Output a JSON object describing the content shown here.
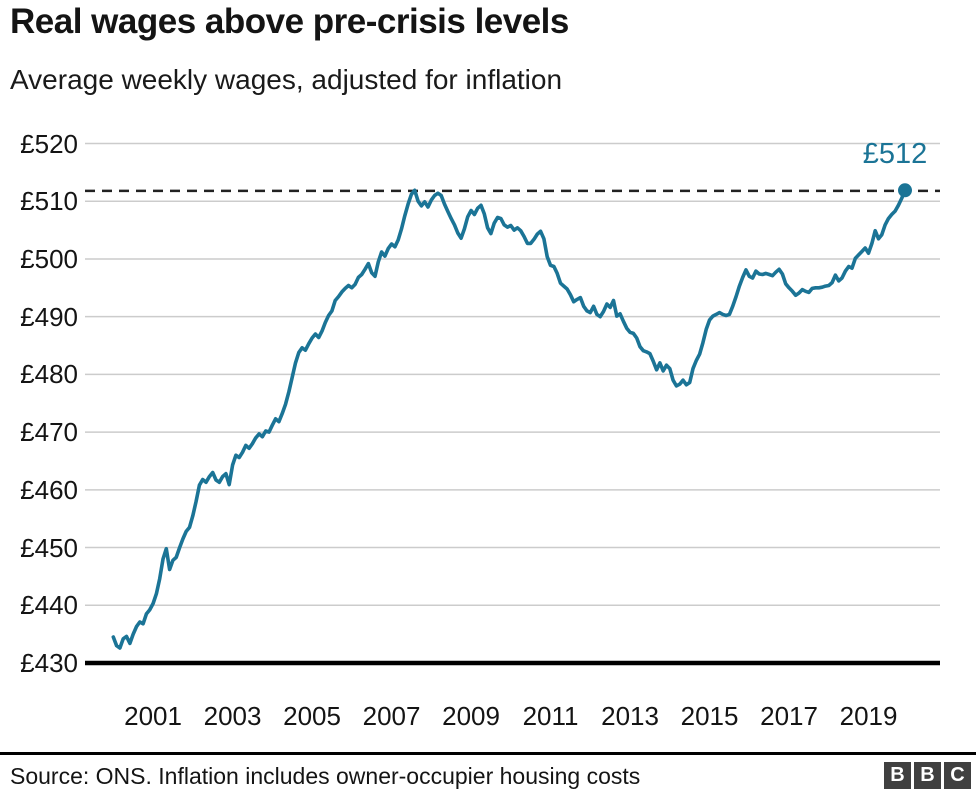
{
  "header": {
    "title": "Real wages above pre-crisis levels",
    "subtitle": "Average weekly wages, adjusted for inflation"
  },
  "chart_data": {
    "type": "line",
    "title": "Real wages above pre-crisis levels",
    "subtitle": "Average weekly wages, adjusted for inflation",
    "unit": "GBP per week",
    "currency_prefix": "£",
    "x_start_year": 2000,
    "x_interval_months": 1,
    "values": [
      434.5,
      433.0,
      432.6,
      434.2,
      434.6,
      433.4,
      435.0,
      436.3,
      437.1,
      436.8,
      438.5,
      439.2,
      440.3,
      442.0,
      444.6,
      448.0,
      449.8,
      446.2,
      447.8,
      448.3,
      450.0,
      451.5,
      452.8,
      453.5,
      455.5,
      458.0,
      460.8,
      461.8,
      461.3,
      462.3,
      463.0,
      461.7,
      461.3,
      462.3,
      462.8,
      460.9,
      464.3,
      466.0,
      465.6,
      466.5,
      467.7,
      467.2,
      468.0,
      469.0,
      469.7,
      469.2,
      470.2,
      470.0,
      471.2,
      472.3,
      471.8,
      473.2,
      474.8,
      477.0,
      479.5,
      482.0,
      483.8,
      484.6,
      484.2,
      485.3,
      486.3,
      487.0,
      486.4,
      487.5,
      489.0,
      490.2,
      491.0,
      492.8,
      493.5,
      494.3,
      494.9,
      495.4,
      495.0,
      495.6,
      496.8,
      497.3,
      498.2,
      499.2,
      497.6,
      497.0,
      499.5,
      501.2,
      500.5,
      501.8,
      502.6,
      502.1,
      503.3,
      505.2,
      507.5,
      509.5,
      511.2,
      511.9,
      510.0,
      509.2,
      509.9,
      509.0,
      510.2,
      511.0,
      511.4,
      511.0,
      509.5,
      508.2,
      507.0,
      505.9,
      504.5,
      503.6,
      505.2,
      507.3,
      508.4,
      507.7,
      508.8,
      509.3,
      507.8,
      505.4,
      504.4,
      506.2,
      507.2,
      507.0,
      505.9,
      505.5,
      505.8,
      505.0,
      505.4,
      504.9,
      503.9,
      502.7,
      502.7,
      503.4,
      504.3,
      504.8,
      503.5,
      500.4,
      498.9,
      498.7,
      497.5,
      495.8,
      495.3,
      494.8,
      493.8,
      492.6,
      493.0,
      493.3,
      491.8,
      491.0,
      490.7,
      491.8,
      490.4,
      490.0,
      490.9,
      492.2,
      491.6,
      492.8,
      490.1,
      490.5,
      489.2,
      488.0,
      487.3,
      487.1,
      486.3,
      484.8,
      484.1,
      483.9,
      483.6,
      482.3,
      480.8,
      482.0,
      480.6,
      481.6,
      481.0,
      479.0,
      478.0,
      478.3,
      479.0,
      478.2,
      478.6,
      481.0,
      482.4,
      483.5,
      485.5,
      487.8,
      489.4,
      490.1,
      490.4,
      490.7,
      490.4,
      490.2,
      490.4,
      491.8,
      493.5,
      495.3,
      496.8,
      498.1,
      497.0,
      496.7,
      497.9,
      497.4,
      497.3,
      497.5,
      497.3,
      497.1,
      497.7,
      498.2,
      497.4,
      495.7,
      495.0,
      494.4,
      493.7,
      494.1,
      494.7,
      494.4,
      494.2,
      494.9,
      495.0,
      495.0,
      495.1,
      495.3,
      495.4,
      495.9,
      497.2,
      496.2,
      496.7,
      497.9,
      498.7,
      498.4,
      500.1,
      500.7,
      501.3,
      501.9,
      501.0,
      502.7,
      504.9,
      503.5,
      504.2,
      505.9,
      507.0,
      507.7,
      508.3,
      509.3,
      510.5,
      511.9
    ],
    "x_tick_labels": [
      "2001",
      "2003",
      "2005",
      "2007",
      "2009",
      "2011",
      "2013",
      "2015",
      "2017",
      "2019"
    ],
    "y_tick_values": [
      430,
      440,
      450,
      460,
      470,
      480,
      490,
      500,
      510,
      520
    ],
    "y_axis_range": [
      430,
      520
    ],
    "grid": "horizontal-only",
    "dashed_reference_value": 511.8,
    "end_point": {
      "label": "£512",
      "value": 511.9
    },
    "line_color": "#1b7496",
    "grid_color": "#cccccc",
    "dashed_color": "#222222",
    "axis_color": "#000000"
  },
  "footer": {
    "source": "Source: ONS. Inflation includes owner-occupier housing costs",
    "logo": {
      "letters": [
        "B",
        "B",
        "C"
      ],
      "box_color": "#404040",
      "letter_color": "#ffffff"
    }
  }
}
